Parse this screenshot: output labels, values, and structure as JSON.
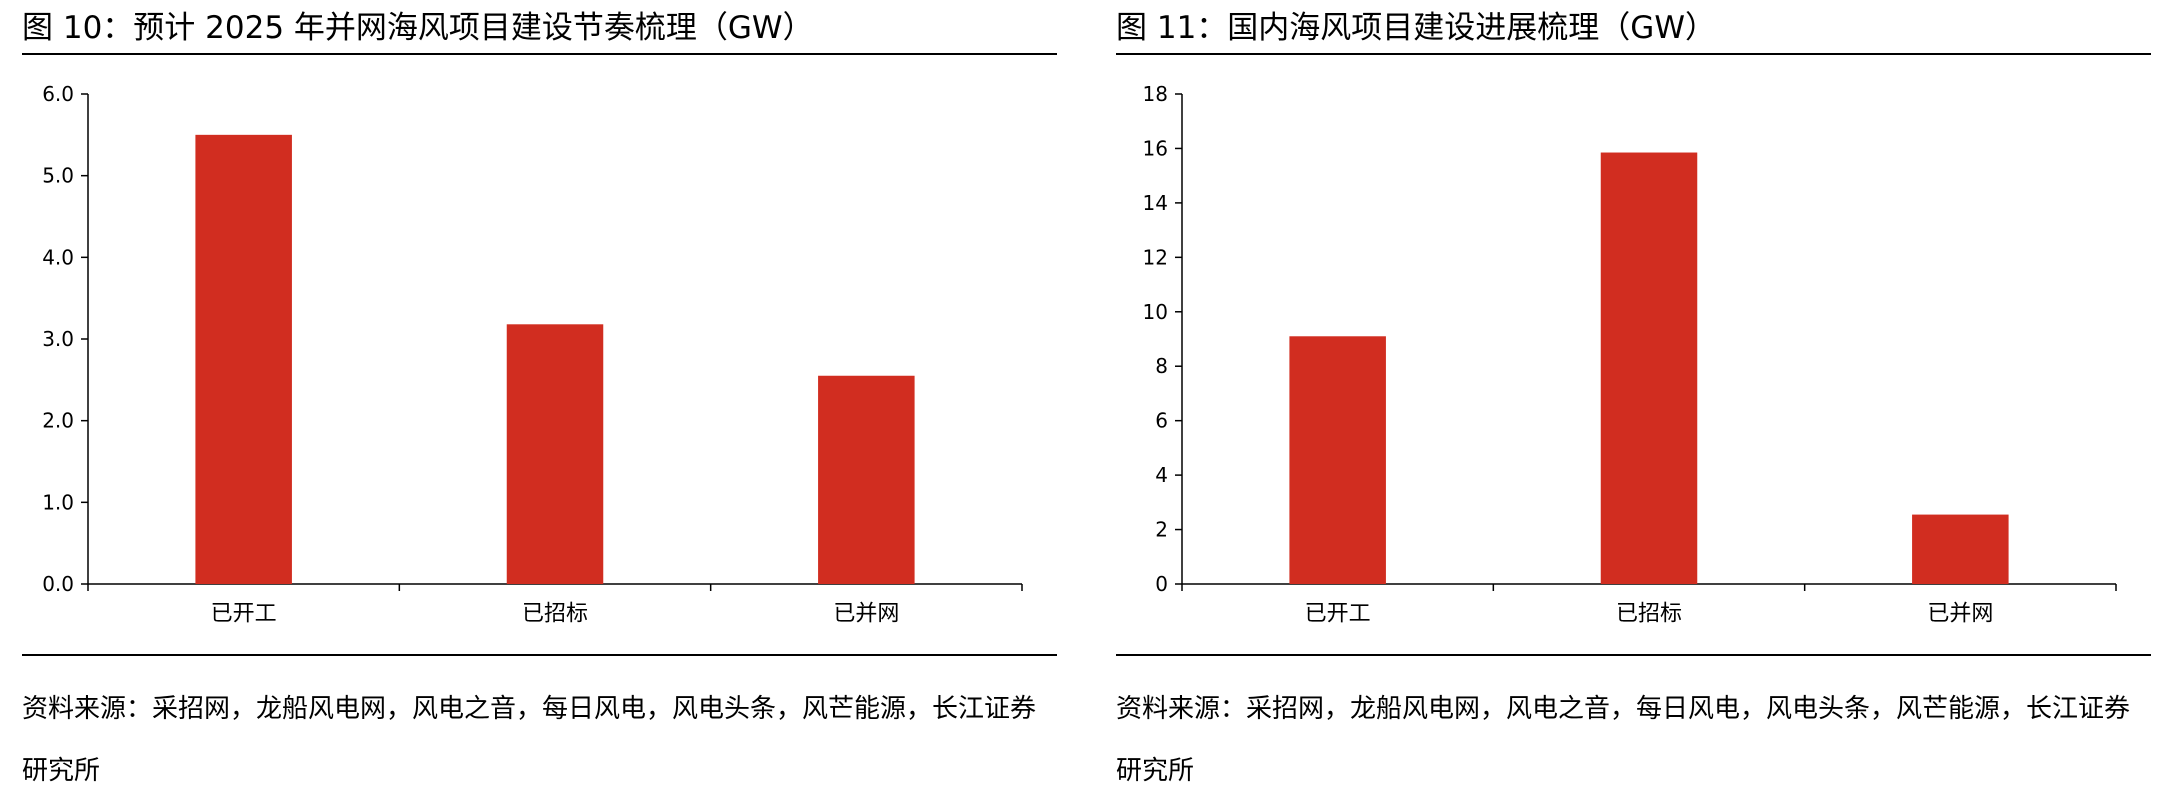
{
  "figures": [
    {
      "title": "图 10：预计 2025 年并网海风项目建设节奏梳理（GW）",
      "source": "资料来源：采招网，龙船风电网，风电之音，每日风电，风电头条，风芒能源，长江证券研究所"
    },
    {
      "title": "图 11：国内海风项目建设进展梳理（GW）",
      "source": "资料来源：采招网，龙船风电网，风电之音，每日风电，风电头条，风芒能源，长江证券研究所"
    }
  ],
  "chart_data": [
    {
      "type": "bar",
      "title": "图 10：预计 2025 年并网海风项目建设节奏梳理（GW）",
      "categories": [
        "已开工",
        "已招标",
        "已并网"
      ],
      "values": [
        5.5,
        3.18,
        2.55
      ],
      "ylim": [
        0,
        6
      ],
      "yticks": [
        0,
        1,
        2,
        3,
        4,
        5,
        6
      ],
      "ytick_labels": [
        "0.0",
        "1.0",
        "2.0",
        "3.0",
        "4.0",
        "5.0",
        "6.0"
      ],
      "xlabel": "",
      "ylabel": "",
      "grid": false,
      "legend": "none",
      "bar_color": "#D12D20"
    },
    {
      "type": "bar",
      "title": "图 11：国内海风项目建设进展梳理（GW）",
      "categories": [
        "已开工",
        "已招标",
        "已并网"
      ],
      "values": [
        9.1,
        15.85,
        2.55
      ],
      "ylim": [
        0,
        18
      ],
      "yticks": [
        0,
        2,
        4,
        6,
        8,
        10,
        12,
        14,
        16,
        18
      ],
      "ytick_labels": [
        "0",
        "2",
        "4",
        "6",
        "8",
        "10",
        "12",
        "14",
        "16",
        "18"
      ],
      "xlabel": "",
      "ylabel": "",
      "grid": false,
      "legend": "none",
      "bar_color": "#D12D20"
    }
  ]
}
